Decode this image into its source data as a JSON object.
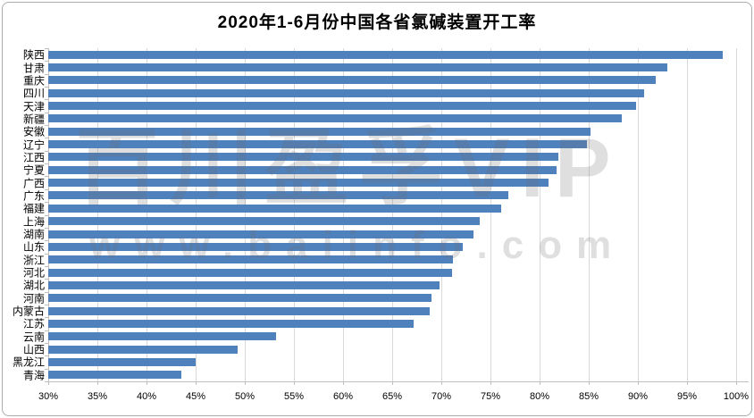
{
  "title": "2020年1-6月份中国各省氯碱装置开工率",
  "watermark": {
    "line1": "百川盈孚VIP",
    "line2": "www.baiinfo.com"
  },
  "colors": {
    "bar": "#4f81bd",
    "gridline": "#d9d9d9",
    "axis": "#bfbfbf",
    "text": "#000000",
    "frame": "#ababab",
    "watermark": "rgba(110,110,110,0.22)"
  },
  "chart_data": {
    "type": "bar",
    "orientation": "horizontal",
    "title": "2020年1-6月份中国各省氯碱装置开工率",
    "categories": [
      "陕西",
      "甘肃",
      "重庆",
      "四川",
      "天津",
      "新疆",
      "安徽",
      "辽宁",
      "江西",
      "宁夏",
      "广西",
      "广东",
      "福建",
      "上海",
      "湖南",
      "山东",
      "浙江",
      "河北",
      "湖北",
      "河南",
      "内蒙古",
      "江苏",
      "云南",
      "山西",
      "黑龙江",
      "青海"
    ],
    "values": [
      98.6,
      93.0,
      91.8,
      90.6,
      89.8,
      88.4,
      85.2,
      84.8,
      81.9,
      81.7,
      80.9,
      76.8,
      76.1,
      73.9,
      73.3,
      72.2,
      71.2,
      71.1,
      69.8,
      69.0,
      68.8,
      67.2,
      53.2,
      49.3,
      45.0,
      43.5
    ],
    "unit": "%",
    "xlabel": "",
    "ylabel": "",
    "xlim": [
      30,
      100
    ],
    "x_tick_values": [
      30,
      35,
      40,
      45,
      50,
      55,
      60,
      65,
      70,
      75,
      80,
      85,
      90,
      95,
      100
    ],
    "x_ticks": [
      "30%",
      "35%",
      "40%",
      "45%",
      "50%",
      "55%",
      "60%",
      "65%",
      "70%",
      "75%",
      "80%",
      "85%",
      "90%",
      "95%",
      "100%"
    ],
    "grid": true,
    "legend": false
  }
}
